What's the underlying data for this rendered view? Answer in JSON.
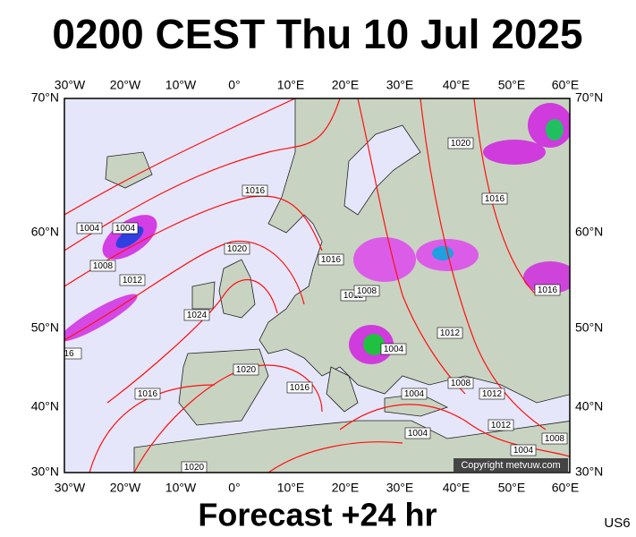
{
  "header": {
    "title": "0200 CEST Thu 10 Jul 2025"
  },
  "map": {
    "lon_labels": [
      "30°W",
      "20°W",
      "10°W",
      "0°",
      "10°E",
      "20°E",
      "30°E",
      "40°E",
      "50°E",
      "60°E"
    ],
    "lat_labels": [
      "70°N",
      "60°N",
      "50°N",
      "40°N",
      "30°N"
    ],
    "isobar_labels": [
      "1004",
      "1004",
      "1008",
      "1012",
      "1016",
      "1020",
      "1024",
      "1016",
      "1012",
      "1008",
      "1020",
      "1016",
      "1016",
      "1004",
      "1012",
      "1020",
      "1016",
      "1016",
      "1004",
      "1008",
      "1012",
      "1012",
      "1004",
      "1008",
      "1004",
      "1020",
      "16"
    ],
    "copyright": "Copyright metvuw.com"
  },
  "footer": {
    "forecast": "Forecast +24 hr",
    "code": "US6"
  }
}
